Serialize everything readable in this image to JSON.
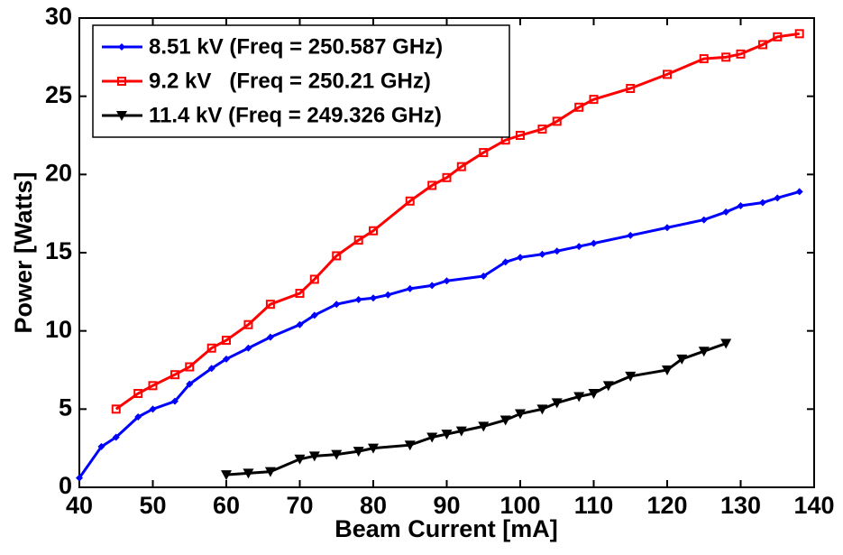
{
  "chart_data": {
    "type": "line",
    "x_label": "Beam Current [mA]",
    "y_label": "Power [Watts]",
    "xlim": [
      40,
      140
    ],
    "xticks": [
      40,
      50,
      60,
      70,
      80,
      90,
      100,
      110,
      120,
      130,
      140
    ],
    "ylim": [
      0,
      30
    ],
    "yticks": [
      0,
      5,
      10,
      15,
      20,
      25,
      30
    ],
    "legend": "upper-left",
    "series": [
      {
        "name": "8.51 kV (Freq = 250.587 GHz)",
        "color": "#0000ff",
        "marker": "diamond",
        "x": [
          40,
          43,
          45,
          48,
          50,
          53,
          55,
          58,
          60,
          63,
          66,
          70,
          72,
          75,
          78,
          80,
          82,
          85,
          88,
          90,
          95,
          98,
          100,
          103,
          105,
          108,
          110,
          115,
          120,
          125,
          128,
          130,
          133,
          135,
          138
        ],
        "values": [
          0.6,
          2.6,
          3.2,
          4.5,
          5.0,
          5.5,
          6.6,
          7.6,
          8.2,
          8.9,
          9.6,
          10.4,
          11.0,
          11.7,
          12.0,
          12.1,
          12.3,
          12.7,
          12.9,
          13.2,
          13.5,
          14.4,
          14.7,
          14.9,
          15.1,
          15.4,
          15.6,
          16.1,
          16.6,
          17.1,
          17.6,
          18.0,
          18.2,
          18.5,
          18.9
        ]
      },
      {
        "name": "9.2 kV   (Freq = 250.21 GHz)",
        "color": "#ff0000",
        "marker": "square",
        "x": [
          45,
          48,
          50,
          53,
          55,
          58,
          60,
          63,
          66,
          70,
          72,
          75,
          78,
          80,
          85,
          88,
          90,
          92,
          95,
          98,
          100,
          103,
          105,
          108,
          110,
          115,
          120,
          125,
          128,
          130,
          133,
          135,
          138
        ],
        "values": [
          5.0,
          6.0,
          6.5,
          7.2,
          7.7,
          8.9,
          9.4,
          10.4,
          11.7,
          12.4,
          13.3,
          14.8,
          15.8,
          16.4,
          18.3,
          19.3,
          19.8,
          20.5,
          21.4,
          22.2,
          22.5,
          22.9,
          23.4,
          24.3,
          24.8,
          25.5,
          26.4,
          27.4,
          27.5,
          27.7,
          28.3,
          28.8,
          29.0
        ]
      },
      {
        "name": "11.4 kV (Freq = 249.326 GHz)",
        "color": "#000000",
        "marker": "triangle-down",
        "x": [
          60,
          63,
          66,
          70,
          72,
          75,
          78,
          80,
          85,
          88,
          90,
          92,
          95,
          98,
          100,
          103,
          105,
          108,
          110,
          112,
          115,
          120,
          122,
          125,
          128
        ],
        "values": [
          0.8,
          0.9,
          1.0,
          1.8,
          2.0,
          2.1,
          2.3,
          2.5,
          2.7,
          3.2,
          3.4,
          3.6,
          3.9,
          4.3,
          4.7,
          5.0,
          5.4,
          5.8,
          6.0,
          6.5,
          7.1,
          7.5,
          8.2,
          8.7,
          9.2
        ]
      }
    ]
  }
}
